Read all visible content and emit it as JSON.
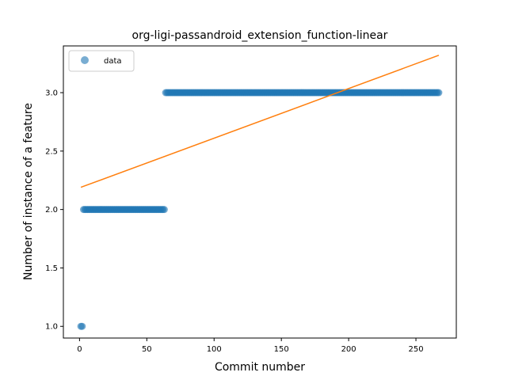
{
  "chart_data": {
    "type": "scatter",
    "title": "org-ligi-passandroid_extension_function-linear",
    "xlabel": "Commit number",
    "ylabel": "Number of instance of a feature",
    "xlim": [
      -12,
      280
    ],
    "ylim": [
      0.9,
      3.4
    ],
    "x_ticks": [
      0,
      50,
      100,
      150,
      200,
      250
    ],
    "y_ticks": [
      1.0,
      1.5,
      2.0,
      2.5,
      3.0
    ],
    "x_tick_labels": [
      "0",
      "50",
      "100",
      "150",
      "200",
      "250"
    ],
    "y_tick_labels": [
      "1.0",
      "1.5",
      "2.0",
      "2.5",
      "3.0"
    ],
    "grid": false,
    "legend": {
      "position": "top-left",
      "entries": [
        "data"
      ]
    },
    "colors": {
      "scatter": "#1f77b4",
      "fit": "#ff7f0e"
    },
    "series": [
      {
        "name": "data",
        "kind": "scatter",
        "segments": [
          {
            "x_start": 1,
            "x_end": 2,
            "y": 1.0
          },
          {
            "x_start": 3,
            "x_end": 63,
            "y": 2.0
          },
          {
            "x_start": 64,
            "x_end": 267,
            "y": 3.0
          }
        ]
      },
      {
        "kind": "line",
        "points": [
          [
            1,
            2.19
          ],
          [
            267,
            3.32
          ]
        ]
      }
    ]
  }
}
